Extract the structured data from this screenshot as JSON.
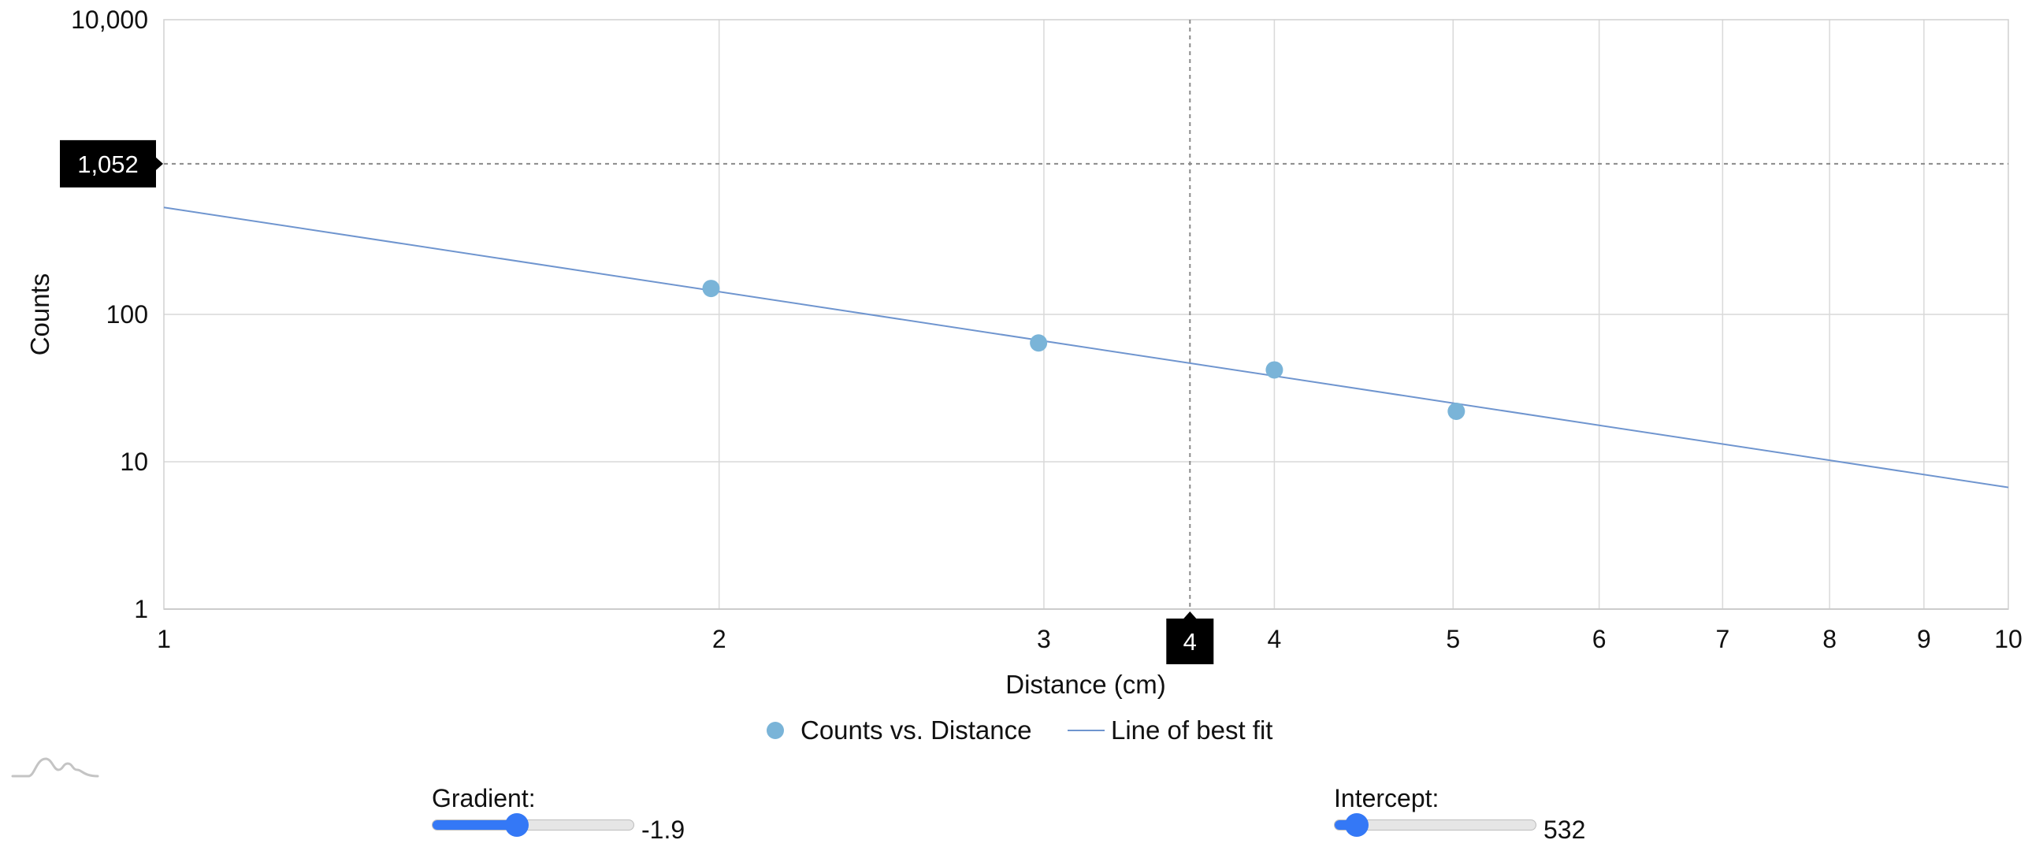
{
  "chart_data": {
    "type": "scatter",
    "xlabel": "Distance (cm)",
    "ylabel": "Counts",
    "x_scale": "log",
    "y_scale": "log",
    "xlim": [
      1,
      10
    ],
    "ylim": [
      1,
      10000
    ],
    "x_ticks": [
      1,
      2,
      3,
      4,
      5,
      6,
      7,
      8,
      9,
      10
    ],
    "x_tick_labels": [
      "1",
      "2",
      "3",
      "4",
      "5",
      "6",
      "7",
      "8",
      "9",
      "10"
    ],
    "y_ticks": [
      1,
      10,
      100,
      10000
    ],
    "y_tick_labels": [
      "1",
      "10",
      "100",
      "10,000"
    ],
    "grid": true,
    "legend_position": "bottom-center",
    "series": [
      {
        "name": "Counts vs. Distance",
        "type": "scatter",
        "color": "#7ab4d8",
        "points": [
          [
            1.98,
            150
          ],
          [
            2.98,
            64
          ],
          [
            4.0,
            42
          ],
          [
            5.02,
            22
          ]
        ]
      },
      {
        "name": "Line of best fit",
        "type": "line",
        "color": "#6f95cf",
        "gradient": -1.9,
        "intercept": 532
      }
    ],
    "crosshair": {
      "x_value": 3.6,
      "x_label": "4",
      "y_value": 1052,
      "y_label": "1,052"
    }
  },
  "controls": {
    "gradient": {
      "label": "Gradient:",
      "value": -1.9,
      "value_text": "-1.9",
      "fraction": 0.42
    },
    "intercept": {
      "label": "Intercept:",
      "value": 532,
      "value_text": "532",
      "fraction": 0.11
    }
  },
  "colors": {
    "grid": "#d9d9d9",
    "axis": "#bfbfbf",
    "crosshair": "#8a8a8a",
    "slider_accent": "#3478f6"
  },
  "icons": {
    "logo": "wave-logo-icon"
  }
}
